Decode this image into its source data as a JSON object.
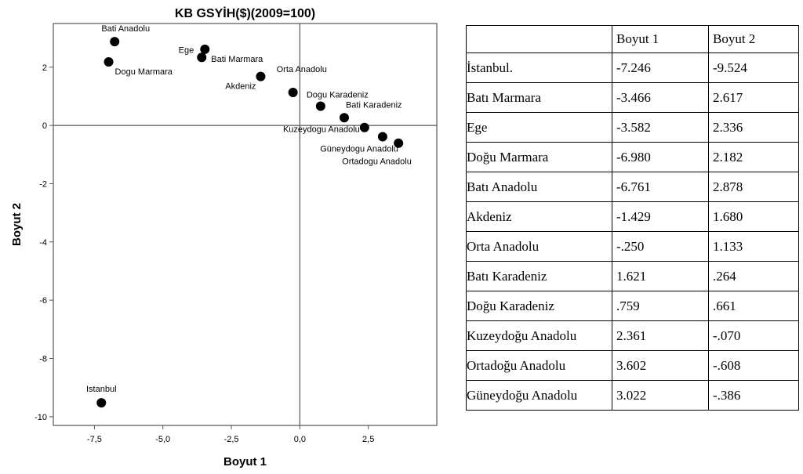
{
  "chart_data": {
    "type": "scatter",
    "title": "KB GSYİH($)(2009=100)",
    "xlabel": "Boyut 1",
    "ylabel": "Boyut 2",
    "xlim": [
      -9.0,
      5.0
    ],
    "ylim": [
      -10.3,
      3.5
    ],
    "x_ticks": [
      -7.5,
      -5.0,
      -2.5,
      0.0,
      2.5
    ],
    "x_tick_labels": [
      "-7,5",
      "-5,0",
      "-2,5",
      "0,0",
      "2,5"
    ],
    "y_ticks": [
      -10,
      -8,
      -6,
      -4,
      -2,
      0,
      2
    ],
    "y_tick_labels": [
      "-10",
      "-8",
      "-6",
      "-4",
      "-2",
      "0",
      "2"
    ],
    "reference_lines": {
      "x": 0,
      "y": 0
    },
    "grid": false,
    "points": [
      {
        "label": "Istanbul",
        "x": -7.246,
        "y": -9.524,
        "label_pos": "above"
      },
      {
        "label": "Bati Marmara",
        "x": -3.466,
        "y": 2.617,
        "label_pos": "below-right"
      },
      {
        "label": "Ege",
        "x": -3.582,
        "y": 2.336,
        "label_pos": "above-left"
      },
      {
        "label": "Dogu Marmara",
        "x": -6.98,
        "y": 2.182,
        "label_pos": "below-right"
      },
      {
        "label": "Bati Anadolu",
        "x": -6.761,
        "y": 2.878,
        "label_pos": "above"
      },
      {
        "label": "Akdeniz",
        "x": -1.429,
        "y": 1.68,
        "label_pos": "below-left"
      },
      {
        "label": "Orta Anadolu",
        "x": -0.25,
        "y": 1.133,
        "label_pos": "above-right"
      },
      {
        "label": "Bati Karadeniz",
        "x": 1.621,
        "y": 0.264,
        "label_pos": "above-right"
      },
      {
        "label": "Dogu Karadeniz",
        "x": 0.759,
        "y": 0.661,
        "label_pos": "above"
      },
      {
        "label": "Kuzeydogu Anadolu",
        "x": 2.361,
        "y": -0.07,
        "label_pos": "left"
      },
      {
        "label": "Ortadogu Anadolu",
        "x": 3.602,
        "y": -0.608,
        "label_pos": "below"
      },
      {
        "label": "Güneydogu Anadolu",
        "x": 3.022,
        "y": -0.386,
        "label_pos": "below-left"
      }
    ]
  },
  "table": {
    "headers": [
      "",
      "Boyut 1",
      "Boyut 2"
    ],
    "rows": [
      [
        "İstanbul.",
        "-7.246",
        "-9.524"
      ],
      [
        "Batı Marmara",
        "-3.466",
        "2.617"
      ],
      [
        "Ege",
        "-3.582",
        "2.336"
      ],
      [
        "Doğu Marmara",
        "-6.980",
        "2.182"
      ],
      [
        "Batı Anadolu",
        "-6.761",
        "2.878"
      ],
      [
        "Akdeniz",
        "-1.429",
        "1.680"
      ],
      [
        "Orta Anadolu",
        "-.250",
        "1.133"
      ],
      [
        "Batı Karadeniz",
        "1.621",
        ".264"
      ],
      [
        "Doğu Karadeniz",
        ".759",
        ".661"
      ],
      [
        "Kuzeydoğu Anadolu",
        "2.361",
        "-.070"
      ],
      [
        "Ortadoğu Anadolu",
        "3.602",
        "-.608"
      ],
      [
        "Güneydoğu Anadolu",
        "3.022",
        "-.386"
      ]
    ]
  }
}
